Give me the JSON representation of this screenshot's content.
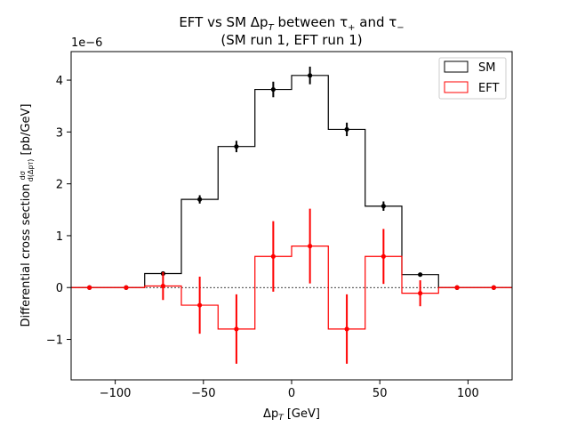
{
  "chart_data": {
    "type": "histogram-step",
    "title_line1": "EFT vs SM Δp",
    "title_line1_sub": "T",
    "title_line1_rest": " between τ",
    "title_tau_plus_sub": "+",
    "title_and": " and τ",
    "title_tau_minus_sub": "−",
    "title_line2": "(SM run 1, EFT run 1)",
    "xlabel_main": "Δp",
    "xlabel_sub": "T",
    "xlabel_unit": " [GeV]",
    "ylabel_main": "Differential cross section ",
    "ylabel_frac_num": "dσ",
    "ylabel_frac_den": "d(Δp",
    "ylabel_frac_den_sub": "T",
    "ylabel_frac_den_close": ")",
    "ylabel_unit": " [pb/GeV]",
    "y_scale_label": "1e−6",
    "xlim": [
      -125,
      125
    ],
    "ylim": [
      -1.78,
      4.55
    ],
    "x_ticks": [
      -100,
      -50,
      0,
      50,
      100
    ],
    "x_tick_labels": [
      "−100",
      "−50",
      "0",
      "50",
      "100"
    ],
    "y_ticks": [
      -1,
      0,
      1,
      2,
      3,
      4
    ],
    "y_tick_labels": [
      "−1",
      "0",
      "1",
      "2",
      "3",
      "4"
    ],
    "bin_edges": [
      -125,
      -104.2,
      -83.3,
      -62.5,
      -41.7,
      -20.8,
      0,
      20.8,
      41.7,
      62.5,
      83.3,
      104.2,
      125
    ],
    "zero_line": true,
    "legend_position": "upper right",
    "series": [
      {
        "name": "SM",
        "color": "#000000",
        "centers": [
          -114.6,
          -93.8,
          -72.9,
          -52.1,
          -31.3,
          -10.4,
          10.4,
          31.3,
          52.1,
          72.9,
          93.8,
          114.6
        ],
        "values": [
          0,
          0,
          0.27,
          1.7,
          2.72,
          3.82,
          4.09,
          3.05,
          1.57,
          0.25,
          0,
          0
        ],
        "errors": [
          0,
          0,
          0.04,
          0.08,
          0.11,
          0.15,
          0.17,
          0.13,
          0.09,
          0.03,
          0,
          0
        ]
      },
      {
        "name": "EFT",
        "color": "#ff0000",
        "centers": [
          -114.6,
          -93.8,
          -72.9,
          -52.1,
          -31.3,
          -10.4,
          10.4,
          31.3,
          52.1,
          72.9,
          93.8,
          114.6
        ],
        "values": [
          0,
          0,
          0.03,
          -0.34,
          -0.8,
          0.6,
          0.8,
          -0.8,
          0.6,
          -0.11,
          0,
          0
        ],
        "errors": [
          0,
          0,
          0.27,
          0.55,
          0.67,
          0.68,
          0.72,
          0.67,
          0.53,
          0.25,
          0,
          0
        ]
      }
    ]
  }
}
